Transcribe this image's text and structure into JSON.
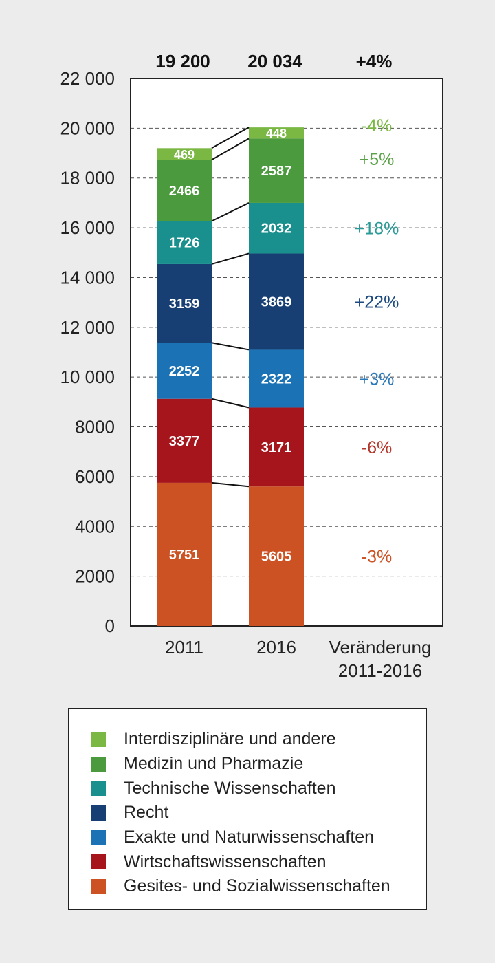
{
  "chart_data": {
    "type": "bar",
    "stacked": true,
    "categories": [
      "2011",
      "2016"
    ],
    "extra_column_label": [
      "Veränderung",
      "2011-2016"
    ],
    "totals": [
      "19 200",
      "20 034"
    ],
    "total_change": "+4%",
    "ylim": [
      0,
      22000
    ],
    "yticks": [
      "0",
      "2000",
      "4000",
      "6000",
      "8000",
      "10 000",
      "12 000",
      "14 000",
      "16 000",
      "18 000",
      "20 000",
      "22 000"
    ],
    "grid": "dashed horizontal",
    "series": [
      {
        "name": "Gesites- und Sozialwissenschaften",
        "values": [
          5751,
          5605
        ],
        "change": "-3%",
        "color": "#cc5224",
        "label_color": "#cc5224"
      },
      {
        "name": "Wirtschaftswissenschaften",
        "values": [
          3377,
          3171
        ],
        "change": "-6%",
        "color": "#a5151b",
        "label_color": "#b5362b"
      },
      {
        "name": "Exakte und Naturwissenschaften",
        "values": [
          2252,
          2322
        ],
        "change": "+3%",
        "color": "#1b73b5",
        "label_color": "#2b78b8"
      },
      {
        "name": "Recht",
        "values": [
          3159,
          3869
        ],
        "change": "+22%",
        "color": "#173f74",
        "label_color": "#1d4a80"
      },
      {
        "name": "Technische Wissenschaften",
        "values": [
          1726,
          2032
        ],
        "change": "+18%",
        "color": "#1a908e",
        "label_color": "#2a9a97"
      },
      {
        "name": "Medizin und Pharmazie",
        "values": [
          2466,
          2587
        ],
        "change": "+5%",
        "color": "#4c9a3e",
        "label_color": "#5aa148"
      },
      {
        "name": "Interdisziplinäre und andere",
        "values": [
          469,
          448
        ],
        "change": "-4%",
        "color": "#7ab743",
        "label_color": "#7ab743"
      }
    ],
    "legend_position": "bottom"
  }
}
